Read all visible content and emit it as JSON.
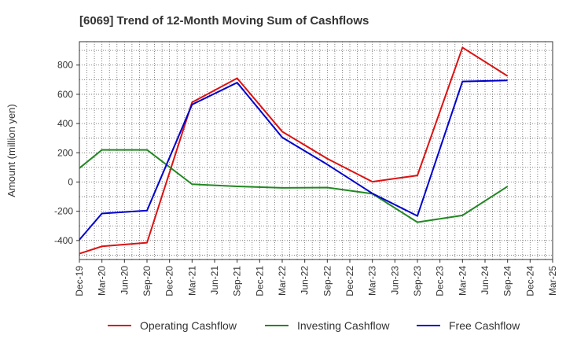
{
  "chart_data": {
    "type": "line",
    "title": "[6069]  Trend of 12-Month Moving Sum of Cashflows",
    "xlabel": "",
    "ylabel": "Amount (million yen)",
    "categories": [
      "Dec-19",
      "Mar-20",
      "Jun-20",
      "Sep-20",
      "Dec-20",
      "Mar-21",
      "Jun-21",
      "Sep-21",
      "Dec-21",
      "Mar-22",
      "Jun-22",
      "Sep-22",
      "Dec-22",
      "Mar-23",
      "Jun-23",
      "Sep-23",
      "Dec-23",
      "Mar-24",
      "Jun-24",
      "Sep-24",
      "Dec-24",
      "Mar-25"
    ],
    "ylim": [
      -530,
      960
    ],
    "yticks": [
      -400,
      -200,
      0,
      200,
      400,
      600,
      800
    ],
    "grid": true,
    "legend_position": "bottom",
    "series": [
      {
        "name": "Operating Cashflow",
        "color": "#dd1111",
        "points": [
          [
            "Dec-19",
            -490
          ],
          [
            "Mar-20",
            -440
          ],
          [
            "Sep-20",
            -415
          ],
          [
            "Mar-21",
            545
          ],
          [
            "Sep-21",
            710
          ],
          [
            "Mar-22",
            345
          ],
          [
            "Sep-22",
            160
          ],
          [
            "Mar-23",
            2
          ],
          [
            "Sep-23",
            45
          ],
          [
            "Mar-24",
            920
          ],
          [
            "Sep-24",
            725
          ]
        ]
      },
      {
        "name": "Investing Cashflow",
        "color": "#228822",
        "points": [
          [
            "Dec-19",
            95
          ],
          [
            "Mar-20",
            220
          ],
          [
            "Sep-20",
            220
          ],
          [
            "Mar-21",
            -15
          ],
          [
            "Sep-21",
            -30
          ],
          [
            "Mar-22",
            -40
          ],
          [
            "Sep-22",
            -38
          ],
          [
            "Mar-23",
            -80
          ],
          [
            "Sep-23",
            -275
          ],
          [
            "Mar-24",
            -228
          ],
          [
            "Sep-24",
            -30
          ]
        ]
      },
      {
        "name": "Free Cashflow",
        "color": "#0000cc",
        "points": [
          [
            "Dec-19",
            -395
          ],
          [
            "Mar-20",
            -215
          ],
          [
            "Sep-20",
            -195
          ],
          [
            "Mar-21",
            530
          ],
          [
            "Sep-21",
            680
          ],
          [
            "Mar-22",
            305
          ],
          [
            "Sep-22",
            120
          ],
          [
            "Mar-23",
            -78
          ],
          [
            "Sep-23",
            -232
          ],
          [
            "Mar-24",
            688
          ],
          [
            "Sep-24",
            695
          ]
        ]
      }
    ]
  }
}
